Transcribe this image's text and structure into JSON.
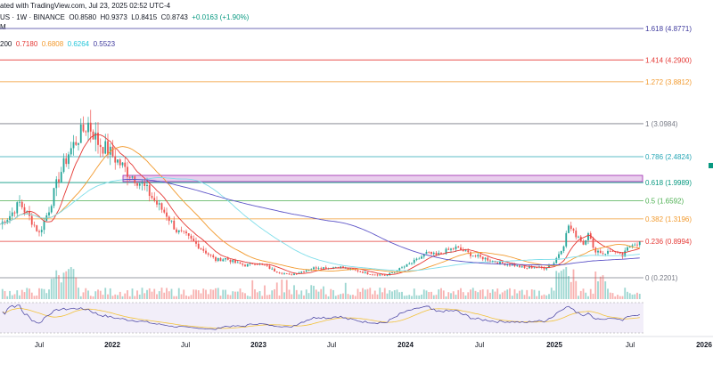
{
  "header": {
    "line1": "ated with TradingView.com, Jul 23, 2025 02:52 UTC-4",
    "symbol": "US · 1W · BINANCE",
    "o_label": "O",
    "o_value": "0.8580",
    "h_label": "H",
    "h_value": "0.9373",
    "l_label": "L",
    "l_value": "0.8415",
    "c_label": "C",
    "c_value": "0.8743",
    "change": "+0.0163 (+1.90%)",
    "indicator_tag": "M",
    "ma_label": "200",
    "ma_values": [
      "0.7180",
      "0.6808",
      "0.6264",
      "0.5523"
    ]
  },
  "colors": {
    "up": "#26a69a",
    "down": "#ef5350",
    "ma_red": "#e53935",
    "ma_orange": "#f29a2e",
    "ma_cyan": "#80deea",
    "ma_purple": "#5e55c8",
    "zone": "#e1bee7",
    "zone_border": "#9c27b0",
    "rsi_bg": "#ede7f6",
    "rsi_line": "#3f3a9e",
    "rsi_ma": "#f2c23b"
  },
  "chart_data": {
    "type": "candlestick",
    "x_ticks": [
      "Jul",
      "2022",
      "Jul",
      "2023",
      "Jul",
      "2024",
      "Jul",
      "2025",
      "Jul",
      "2026"
    ],
    "x_ticks_bold": [
      "2022",
      "2023",
      "2024",
      "2025",
      "2026"
    ],
    "y_range": [
      0.2201,
      4.8771
    ],
    "fib_levels": [
      {
        "label": "1.618 (4.8771)",
        "ratio": 1.618,
        "price": 4.8771,
        "color": "#3f3a9e"
      },
      {
        "label": "1.414 (4.2900)",
        "ratio": 1.414,
        "price": 4.29,
        "color": "#e53935"
      },
      {
        "label": "1.272 (3.8812)",
        "ratio": 1.272,
        "price": 3.8812,
        "color": "#f29a2e"
      },
      {
        "label": "1 (3.0984)",
        "ratio": 1,
        "price": 3.0984,
        "color": "#787b86"
      },
      {
        "label": "0.786 (2.4824)",
        "ratio": 0.786,
        "price": 2.4824,
        "color": "#26a6b5"
      },
      {
        "label": "0.618 (1.9989)",
        "ratio": 0.618,
        "price": 1.9989,
        "color": "#089981"
      },
      {
        "label": "0.5 (1.6592)",
        "ratio": 0.5,
        "price": 1.6592,
        "color": "#4caf50"
      },
      {
        "label": "0.382 (1.3196)",
        "ratio": 0.382,
        "price": 1.3196,
        "color": "#f29a2e"
      },
      {
        "label": "0.236 (0.8994)",
        "ratio": 0.236,
        "price": 0.8994,
        "color": "#e53935"
      },
      {
        "label": "0 (0.2201)",
        "ratio": 0,
        "price": 0.2201,
        "color": "#787b86"
      }
    ],
    "close_path": [
      [
        0,
        1.22
      ],
      [
        4,
        1.38
      ],
      [
        8,
        1.62
      ],
      [
        12,
        1.35
      ],
      [
        16,
        1.05
      ],
      [
        20,
        1.5
      ],
      [
        24,
        2.1
      ],
      [
        28,
        2.55
      ],
      [
        32,
        2.85
      ],
      [
        36,
        3.1
      ],
      [
        40,
        2.75
      ],
      [
        44,
        2.6
      ],
      [
        48,
        2.4
      ],
      [
        52,
        2.2
      ],
      [
        56,
        2.05
      ],
      [
        60,
        1.85
      ],
      [
        64,
        1.6
      ],
      [
        68,
        1.4
      ],
      [
        72,
        1.1
      ],
      [
        76,
        1.0
      ],
      [
        80,
        0.85
      ],
      [
        84,
        0.7
      ],
      [
        88,
        0.55
      ],
      [
        92,
        0.58
      ],
      [
        96,
        0.5
      ],
      [
        100,
        0.45
      ],
      [
        104,
        0.5
      ],
      [
        108,
        0.45
      ],
      [
        112,
        0.35
      ],
      [
        116,
        0.3
      ],
      [
        118,
        0.27
      ],
      [
        122,
        0.32
      ],
      [
        126,
        0.38
      ],
      [
        130,
        0.42
      ],
      [
        134,
        0.4
      ],
      [
        138,
        0.43
      ],
      [
        142,
        0.38
      ],
      [
        146,
        0.35
      ],
      [
        150,
        0.3
      ],
      [
        154,
        0.28
      ],
      [
        158,
        0.27
      ],
      [
        162,
        0.36
      ],
      [
        166,
        0.45
      ],
      [
        170,
        0.55
      ],
      [
        174,
        0.68
      ],
      [
        178,
        0.64
      ],
      [
        182,
        0.72
      ],
      [
        186,
        0.78
      ],
      [
        190,
        0.7
      ],
      [
        194,
        0.62
      ],
      [
        198,
        0.58
      ],
      [
        202,
        0.52
      ],
      [
        206,
        0.48
      ],
      [
        210,
        0.45
      ],
      [
        214,
        0.4
      ],
      [
        218,
        0.42
      ],
      [
        222,
        0.4
      ],
      [
        226,
        0.5
      ],
      [
        230,
        0.85
      ],
      [
        232,
        1.2
      ],
      [
        234,
        1.05
      ],
      [
        236,
        1.0
      ],
      [
        238,
        0.85
      ],
      [
        240,
        1.1
      ],
      [
        242,
        0.75
      ],
      [
        244,
        0.72
      ],
      [
        246,
        0.68
      ],
      [
        248,
        0.7
      ],
      [
        250,
        0.74
      ],
      [
        252,
        0.66
      ],
      [
        254,
        0.62
      ],
      [
        256,
        0.76
      ],
      [
        258,
        0.87
      ]
    ],
    "volume_bars": 262,
    "rsi_range": [
      0,
      100
    ]
  }
}
